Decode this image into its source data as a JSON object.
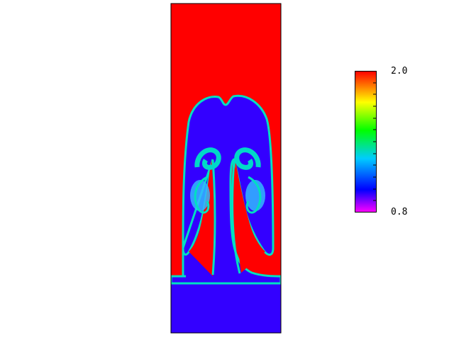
{
  "plot": {
    "colormap": {
      "max_label": "2.0",
      "min_label": "0.8",
      "max_value": 2.0,
      "min_value": 0.8,
      "stops": [
        "#ff00ff",
        "#0000ff",
        "#00ccff",
        "#00ff00",
        "#ffff00",
        "#ff0000"
      ]
    },
    "colors": {
      "heavy_fluid": "#ff0000",
      "light_fluid": "#3300ff",
      "interface": "#00e0c0",
      "outline": "#000000"
    }
  }
}
